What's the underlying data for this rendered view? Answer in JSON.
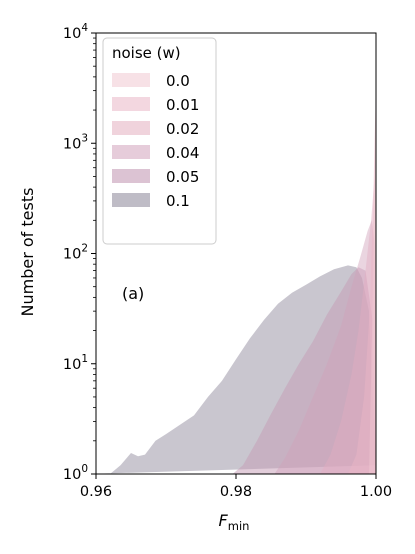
{
  "chart_data": {
    "type": "area",
    "ylabel": "Number of tests",
    "xlabel_main": "F",
    "xlabel_sub": "min",
    "annotation": "(a)",
    "y_log_scale": true,
    "xlim": [
      0.96,
      1.0
    ],
    "ylim": [
      1,
      10000
    ],
    "x_ticks": [
      {
        "value": 0.96,
        "label": "0.96"
      },
      {
        "value": 0.98,
        "label": "0.98"
      },
      {
        "value": 1.0,
        "label": "1.00"
      }
    ],
    "y_ticks": [
      {
        "value": 1,
        "base": "10",
        "exp": "0"
      },
      {
        "value": 10,
        "base": "10",
        "exp": "1"
      },
      {
        "value": 100,
        "base": "10",
        "exp": "2"
      },
      {
        "value": 1000,
        "base": "10",
        "exp": "3"
      },
      {
        "value": 10000,
        "base": "10",
        "exp": "4"
      }
    ],
    "grid": false,
    "legend": {
      "title": "noise (w)",
      "placement": "top-left"
    },
    "series": [
      {
        "name": "0.1",
        "color": "#9d98a8",
        "opacity": 0.55,
        "points": [
          [
            0.9589,
            1.0
          ],
          [
            0.962,
            1.0
          ],
          [
            0.9635,
            1.2
          ],
          [
            0.965,
            1.55
          ],
          [
            0.966,
            1.45
          ],
          [
            0.967,
            1.5
          ],
          [
            0.9685,
            2.0
          ],
          [
            0.97,
            2.3
          ],
          [
            0.972,
            2.8
          ],
          [
            0.974,
            3.4
          ],
          [
            0.976,
            5.0
          ],
          [
            0.978,
            7.0
          ],
          [
            0.98,
            11.0
          ],
          [
            0.982,
            17.0
          ],
          [
            0.984,
            25.0
          ],
          [
            0.986,
            35.0
          ],
          [
            0.988,
            44.0
          ],
          [
            0.99,
            52.0
          ],
          [
            0.992,
            62.0
          ],
          [
            0.994,
            72.0
          ],
          [
            0.996,
            78.0
          ],
          [
            0.9972,
            75.0
          ],
          [
            0.998,
            60.0
          ],
          [
            0.999,
            30.0
          ],
          [
            1.0,
            1.2
          ]
        ]
      },
      {
        "name": "0.05",
        "color": "#c59bb6",
        "opacity": 0.5,
        "points": [
          [
            0.9795,
            1.0
          ],
          [
            0.981,
            1.2
          ],
          [
            0.983,
            2.0
          ],
          [
            0.985,
            3.5
          ],
          [
            0.987,
            6.0
          ],
          [
            0.989,
            10.0
          ],
          [
            0.991,
            16.0
          ],
          [
            0.993,
            28.0
          ],
          [
            0.995,
            45.0
          ],
          [
            0.9965,
            65.0
          ],
          [
            0.9975,
            75.0
          ],
          [
            0.9985,
            70.0
          ],
          [
            0.9995,
            25.0
          ],
          [
            1.0,
            1.0
          ]
        ]
      },
      {
        "name": "0.04",
        "color": "#d1a2bb",
        "opacity": 0.45,
        "points": [
          [
            0.9855,
            1.0
          ],
          [
            0.987,
            1.4
          ],
          [
            0.989,
            2.5
          ],
          [
            0.991,
            5.0
          ],
          [
            0.993,
            10.0
          ],
          [
            0.995,
            22.0
          ],
          [
            0.9965,
            50.0
          ],
          [
            0.9978,
            95.0
          ],
          [
            0.9988,
            160.0
          ],
          [
            0.9994,
            200.0
          ],
          [
            0.9998,
            120.0
          ],
          [
            1.0,
            1.0
          ]
        ]
      },
      {
        "name": "0.02",
        "color": "#e3aec0",
        "opacity": 0.45,
        "points": [
          [
            0.992,
            1.0
          ],
          [
            0.9935,
            1.5
          ],
          [
            0.995,
            3.0
          ],
          [
            0.9965,
            8.0
          ],
          [
            0.9975,
            20.0
          ],
          [
            0.9985,
            70.0
          ],
          [
            0.9993,
            200.0
          ],
          [
            0.9998,
            500.0
          ],
          [
            1.0,
            1.0
          ]
        ]
      },
      {
        "name": "0.01",
        "color": "#eab6c6",
        "opacity": 0.45,
        "points": [
          [
            0.996,
            1.0
          ],
          [
            0.9972,
            1.5
          ],
          [
            0.9983,
            5.0
          ],
          [
            0.9991,
            30.0
          ],
          [
            0.9996,
            300.0
          ],
          [
            0.9999,
            2000.0
          ],
          [
            1.0,
            1.0
          ]
        ]
      },
      {
        "name": "0.0",
        "color": "#f1c9d2",
        "opacity": 0.45,
        "points": [
          [
            0.999,
            1.0
          ],
          [
            0.9995,
            30.0
          ],
          [
            0.9998,
            800.0
          ],
          [
            1.0,
            5000.0
          ],
          [
            1.0,
            1.0
          ]
        ]
      }
    ]
  }
}
